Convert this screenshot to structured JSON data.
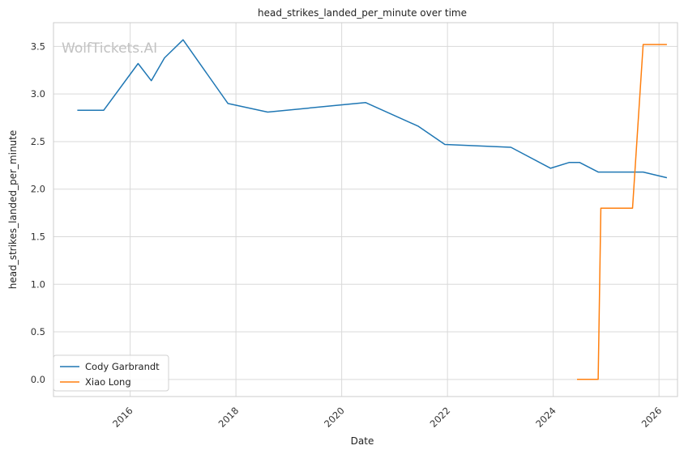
{
  "watermark": "WolfTickets.AI",
  "chart_data": {
    "type": "line",
    "title": "head_strikes_landed_per_minute over time",
    "xlabel": "Date",
    "ylabel": "head_strikes_landed_per_minute",
    "xlim": [
      2014.55,
      2026.35
    ],
    "ylim": [
      -0.18,
      3.75
    ],
    "x_ticks": [
      2016,
      2018,
      2020,
      2022,
      2024,
      2026
    ],
    "x_tick_labels": [
      "2016",
      "2018",
      "2020",
      "2022",
      "2024",
      "2026"
    ],
    "y_ticks": [
      0.0,
      0.5,
      1.0,
      1.5,
      2.0,
      2.5,
      3.0,
      3.5
    ],
    "y_tick_labels": [
      "0.0",
      "0.5",
      "1.0",
      "1.5",
      "2.0",
      "2.5",
      "3.0",
      "3.5"
    ],
    "grid": true,
    "legend_position": "lower-left",
    "series": [
      {
        "name": "Cody Garbrandt",
        "color": "#1f77b4",
        "x": [
          2015.0,
          2015.5,
          2016.15,
          2016.4,
          2016.65,
          2017.0,
          2017.85,
          2018.6,
          2020.45,
          2021.45,
          2021.95,
          2023.2,
          2023.95,
          2024.3,
          2024.5,
          2024.85,
          2025.0,
          2025.7,
          2026.15
        ],
        "y": [
          2.83,
          2.83,
          3.32,
          3.14,
          3.38,
          3.57,
          2.9,
          2.81,
          2.91,
          2.66,
          2.47,
          2.44,
          2.22,
          2.28,
          2.28,
          2.18,
          2.18,
          2.18,
          2.12
        ]
      },
      {
        "name": "Xiao Long",
        "color": "#ff7f0e",
        "x": [
          2024.45,
          2024.85,
          2024.9,
          2025.5,
          2025.7,
          2026.15
        ],
        "y": [
          0.0,
          0.0,
          1.8,
          1.8,
          3.52,
          3.52
        ]
      }
    ]
  }
}
